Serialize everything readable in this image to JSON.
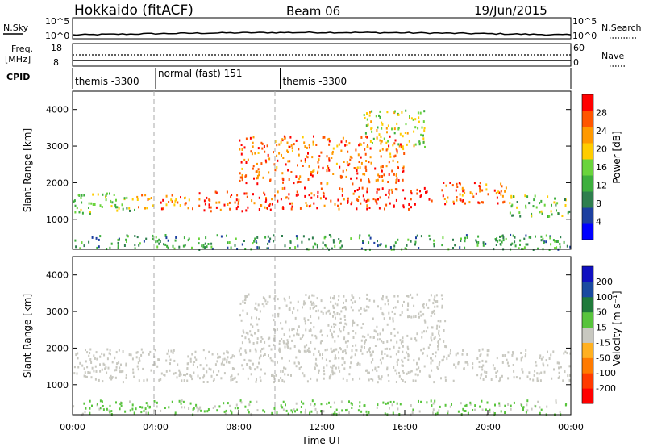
{
  "header": {
    "station": "Hokkaido (fitACF)",
    "beam": "Beam 06",
    "date": "19/Jun/2015"
  },
  "noise_panel": {
    "left_label": "N.Sky",
    "right_label": "N.Search",
    "left_ticks": [
      "10^5",
      "10^0"
    ],
    "right_ticks": [
      "10^5",
      "10^0"
    ]
  },
  "freq_panel": {
    "left_label_lines": [
      "Freq.",
      "[MHz]"
    ],
    "right_label": "Nave",
    "left_ticks": [
      "18",
      "8"
    ],
    "right_ticks": [
      "60",
      "0"
    ]
  },
  "cpid_panel": {
    "label": "CPID",
    "segments": [
      {
        "label": "themis -3300",
        "start_hour": 0,
        "end_hour": 4
      },
      {
        "label": "normal (fast) 151",
        "start_hour": 4,
        "end_hour": 10
      },
      {
        "label": "themis -3300",
        "start_hour": 10,
        "end_hour": 24
      }
    ]
  },
  "colors": {
    "power_scale": [
      "#0000ff",
      "#1c3fa0",
      "#2f7f4e",
      "#3daf3d",
      "#6ad43c",
      "#ffcc00",
      "#ff9900",
      "#ff5500",
      "#ff0000"
    ],
    "velocity_scale": [
      "#1010c0",
      "#1a4aa0",
      "#1f7a3a",
      "#58c43c",
      "#c8c8c0",
      "#ffb020",
      "#ff7a00",
      "#ff3a00",
      "#ff0000"
    ],
    "grey_scatter": "#c8c8c0"
  },
  "chart_data": [
    {
      "type": "heatmap",
      "name": "power",
      "xlabel": "",
      "ylabel": "Slant Range [km]",
      "xlim": [
        0,
        24
      ],
      "ylim": [
        180,
        4500
      ],
      "y_ticks": [
        "1000",
        "2000",
        "3000",
        "4000"
      ],
      "colorbar": {
        "label": "Power [dB]",
        "ticks": [
          "4",
          "8",
          "12",
          "16",
          "20",
          "24",
          "28"
        ],
        "range": [
          0,
          30
        ]
      },
      "scatter_regions": [
        {
          "t0": 0,
          "t1": 3,
          "r0": 1150,
          "r1": 1750,
          "value": 14
        },
        {
          "t0": 3,
          "t1": 6,
          "r0": 1300,
          "r1": 1700,
          "value": 22
        },
        {
          "t0": 6,
          "t1": 10,
          "r0": 1250,
          "r1": 1800,
          "value": 26
        },
        {
          "t0": 10,
          "t1": 17,
          "r0": 1300,
          "r1": 1900,
          "value": 27
        },
        {
          "t0": 17,
          "t1": 21,
          "r0": 1450,
          "r1": 2050,
          "value": 24
        },
        {
          "t0": 21,
          "t1": 24,
          "r0": 1100,
          "r1": 1700,
          "value": 14
        },
        {
          "t0": 8,
          "t1": 16,
          "r0": 2000,
          "r1": 3300,
          "value": 24
        },
        {
          "t0": 14,
          "t1": 17,
          "r0": 3000,
          "r1": 4000,
          "value": 16
        },
        {
          "t0": 0,
          "t1": 24,
          "r0": 200,
          "r1": 600,
          "value": 10
        }
      ]
    },
    {
      "type": "heatmap",
      "name": "velocity",
      "xlabel": "Time UT",
      "ylabel": "Slant Range [km]",
      "xlim": [
        0,
        24
      ],
      "ylim": [
        180,
        4500
      ],
      "x_ticks": [
        "00:00",
        "04:00",
        "08:00",
        "12:00",
        "16:00",
        "20:00",
        "00:00"
      ],
      "y_ticks": [
        "1000",
        "2000",
        "3000",
        "4000"
      ],
      "colorbar": {
        "label": "Velocity [m s⁻¹]",
        "ticks": [
          "200",
          "100",
          "50",
          "15",
          "-15",
          "-50",
          "-100",
          "-200"
        ],
        "range": [
          -250,
          250
        ]
      },
      "scatter_regions": [
        {
          "t0": 0,
          "t1": 24,
          "r0": 1100,
          "r1": 2000,
          "value": 0
        },
        {
          "t0": 8,
          "t1": 18,
          "r0": 2000,
          "r1": 3500,
          "value": 0
        },
        {
          "t0": 0,
          "t1": 24,
          "r0": 200,
          "r1": 600,
          "value": 30
        }
      ]
    }
  ]
}
